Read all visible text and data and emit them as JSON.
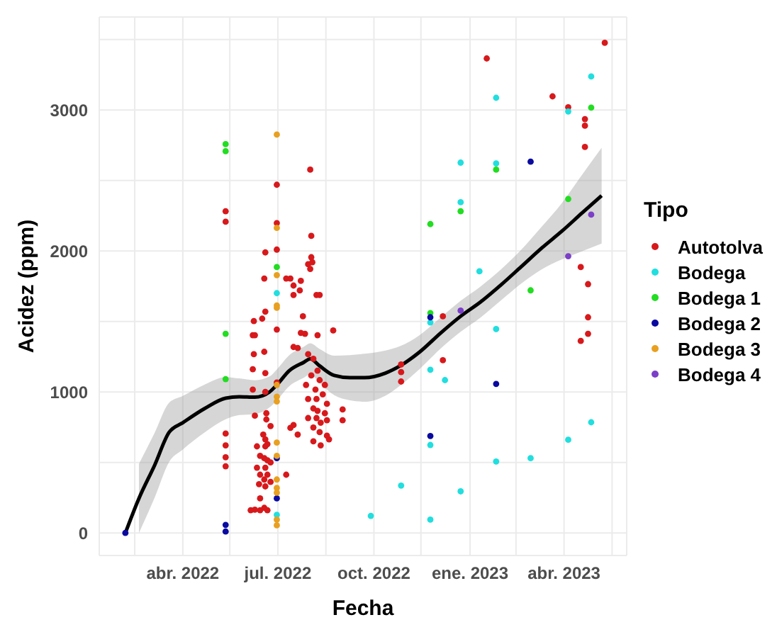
{
  "chart_data": {
    "type": "scatter",
    "xlabel": "Fecha",
    "ylabel": "Acidez (ppm)",
    "legend_title": "Tipo",
    "legend": "right",
    "grid": true,
    "marker": "circle",
    "xlim": [
      "2022-01-11",
      "2023-05-31"
    ],
    "xticks": [
      {
        "value": "2022-02-14",
        "label": null
      },
      {
        "value": "2022-04-01",
        "label": "abr. 2022"
      },
      {
        "value": "2022-05-16",
        "label": null
      },
      {
        "value": "2022-07-01",
        "label": "jul. 2022"
      },
      {
        "value": "2022-08-16",
        "label": null
      },
      {
        "value": "2022-10-01",
        "label": "oct. 2022"
      },
      {
        "value": "2022-11-15",
        "label": null
      },
      {
        "value": "2023-01-01",
        "label": "ene. 2023"
      },
      {
        "value": "2023-02-14",
        "label": null
      },
      {
        "value": "2023-04-01",
        "label": "abr. 2023"
      },
      {
        "value": "2023-05-17",
        "label": null
      }
    ],
    "ylim": [
      -160,
      3660
    ],
    "yticks": [
      0,
      {
        "value": 500,
        "label": null
      },
      1000,
      {
        "value": 1500,
        "label": null
      },
      2000,
      {
        "value": 2500,
        "label": null
      },
      3000,
      {
        "value": 3500,
        "label": null
      }
    ],
    "series": [
      {
        "name": "Autotolva",
        "color": "#d7191c",
        "x": [
          "2022-05-12",
          "2022-05-12",
          "2022-05-12",
          "2022-05-12",
          "2022-05-12",
          "2022-05-12",
          "2022-06-30",
          "2022-06-30",
          "2022-06-30",
          "2022-06-30",
          "2022-06-30",
          "2022-06-19",
          "2022-06-18",
          "2022-06-19",
          "2022-06-16",
          "2022-06-08",
          "2022-06-07",
          "2022-06-09",
          "2022-06-08",
          "2022-06-18",
          "2022-06-07",
          "2022-06-19",
          "2022-06-07",
          "2022-06-19",
          "2022-06-09",
          "2022-06-20",
          "2022-06-20",
          "2022-06-24",
          "2022-06-17",
          "2022-06-19",
          "2022-06-21",
          "2022-06-11",
          "2022-06-19",
          "2022-06-14",
          "2022-06-18",
          "2022-06-21",
          "2022-06-24",
          "2022-06-11",
          "2022-06-19",
          "2022-06-14",
          "2022-06-21",
          "2022-06-18",
          "2022-06-13",
          "2022-06-19",
          "2022-06-14",
          "2022-06-14",
          "2022-06-05",
          "2022-06-18",
          "2022-06-21",
          "2022-06-09",
          "2022-07-09",
          "2022-06-24",
          "2022-07-09",
          "2022-07-13",
          "2022-07-16",
          "2022-07-16",
          "2022-07-23",
          "2022-07-22",
          "2022-07-25",
          "2022-07-16",
          "2022-07-20",
          "2022-07-23",
          "2022-07-27",
          "2022-07-30",
          "2022-08-01",
          "2022-08-02",
          "2022-08-01",
          "2022-08-02",
          "2022-08-03",
          "2022-08-07",
          "2022-08-10",
          "2022-08-08",
          "2022-08-23",
          "2022-07-16",
          "2022-07-20",
          "2022-07-13",
          "2022-07-30",
          "2022-08-04",
          "2022-08-08",
          "2022-08-02",
          "2022-08-10",
          "2022-07-28",
          "2022-08-06",
          "2022-08-15",
          "2022-07-30",
          "2022-08-07",
          "2022-08-13",
          "2022-08-17",
          "2022-08-04",
          "2022-08-08",
          "2022-08-15",
          "2022-07-30",
          "2022-08-07",
          "2022-08-11",
          "2022-08-17",
          "2022-08-04",
          "2022-08-10",
          "2022-08-04",
          "2022-08-19",
          "2022-08-11",
          "2022-08-17",
          "2022-09-01",
          "2022-09-01",
          "2022-10-27",
          "2022-10-27",
          "2022-10-27",
          "2022-12-06",
          "2022-12-06",
          "2023-01-17",
          "2023-03-21",
          "2023-04-05",
          "2023-04-17",
          "2023-04-17",
          "2023-04-21",
          "2023-04-21",
          "2023-04-21",
          "2023-04-24",
          "2023-04-24",
          "2023-04-24",
          "2023-05-10"
        ],
        "values": [
          2282,
          2208,
          705,
          621,
          537,
          473,
          2470,
          2198,
          2010,
          1443,
          1067,
          1990,
          1805,
          1570,
          1520,
          1503,
          1403,
          1403,
          1268,
          1285,
          1161,
          1134,
          1017,
          1000,
          832,
          849,
          805,
          758,
          698,
          664,
          630,
          614,
          614,
          547,
          530,
          515,
          500,
          463,
          463,
          413,
          413,
          379,
          346,
          330,
          245,
          161,
          161,
          178,
          161,
          165,
          413,
          362,
          1805,
          1805,
          1755,
          1688,
          1788,
          1720,
          1537,
          1319,
          1312,
          1419,
          1413,
          1906,
          1873,
          2107,
          2577,
          1956,
          1920,
          1688,
          1688,
          1403,
          1436,
          765,
          698,
          745,
          1268,
          1235,
          1151,
          1117,
          1084,
          1050,
          1017,
          1050,
          950,
          950,
          983,
          916,
          883,
          866,
          849,
          815,
          815,
          782,
          799,
          748,
          715,
          650,
          664,
          621,
          690,
          876,
          799,
          1195,
          1141,
          1074,
          1537,
          1225,
          3366,
          3097,
          3020,
          1886,
          1362,
          2936,
          2889,
          2738,
          1765,
          1530,
          1413,
          3477
        ]
      },
      {
        "name": "Bodega",
        "color": "#22dede",
        "x": [
          "2022-06-30",
          "2022-06-30",
          "2022-09-28",
          "2022-10-27",
          "2022-11-24",
          "2022-11-24",
          "2022-11-24",
          "2022-11-24",
          "2022-12-08",
          "2022-12-23",
          "2022-12-23",
          "2022-12-23",
          "2023-01-10",
          "2023-01-26",
          "2023-01-26",
          "2023-01-26",
          "2023-01-26",
          "2023-02-28",
          "2023-04-05",
          "2023-04-05",
          "2023-04-27",
          "2023-04-27"
        ],
        "values": [
          1701,
          128,
          121,
          336,
          1493,
          1158,
          624,
          94,
          1084,
          2627,
          2346,
          295,
          1856,
          3087,
          2621,
          1446,
          507,
          530,
          2990,
          661,
          3238,
          785
        ]
      },
      {
        "name": "Bodega 1",
        "color": "#22dd22",
        "x": [
          "2022-05-12",
          "2022-05-12",
          "2022-05-12",
          "2022-05-12",
          "2022-06-30",
          "2022-11-24",
          "2022-11-24",
          "2022-12-23",
          "2023-01-26",
          "2023-02-28",
          "2023-04-05",
          "2023-04-27"
        ],
        "values": [
          2758,
          2708,
          1413,
          1091,
          1886,
          2191,
          1560,
          2282,
          2577,
          1721,
          2369,
          3017
        ]
      },
      {
        "name": "Bodega 2",
        "color": "#0a0aa0",
        "x": [
          "2022-02-05",
          "2022-05-12",
          "2022-05-12",
          "2022-06-30",
          "2022-06-30",
          "2022-11-24",
          "2022-11-24",
          "2023-01-26",
          "2023-02-28"
        ],
        "values": [
          0,
          57,
          10,
          530,
          245,
          1530,
          688,
          1057,
          2634
        ]
      },
      {
        "name": "Bodega 3",
        "color": "#e8a020",
        "x": [
          "2022-06-30",
          "2022-06-30",
          "2022-06-30",
          "2022-06-30",
          "2022-06-30",
          "2022-06-30",
          "2022-06-30",
          "2022-06-30",
          "2022-06-30",
          "2022-06-30",
          "2022-06-30",
          "2022-06-30",
          "2022-06-30",
          "2022-06-30",
          "2022-06-30"
        ],
        "values": [
          2826,
          2164,
          1829,
          1614,
          1597,
          1050,
          966,
          933,
          641,
          547,
          379,
          319,
          285,
          94,
          54
        ]
      },
      {
        "name": "Bodega 4",
        "color": "#7b3fc8",
        "x": [
          "2022-12-23",
          "2023-04-05",
          "2023-04-27"
        ],
        "values": [
          1577,
          1963,
          2258
        ]
      },
      {
        "type": "line",
        "color": "#000000",
        "marker": "none",
        "x": [
          "2022-02-05",
          "2022-02-18",
          "2022-03-05",
          "2022-03-19",
          "2022-04-01",
          "2022-04-22",
          "2022-05-12",
          "2022-05-25",
          "2022-06-09",
          "2022-06-23",
          "2022-06-30",
          "2022-07-12",
          "2022-07-26",
          "2022-08-01",
          "2022-08-10",
          "2022-08-24",
          "2022-09-08",
          "2022-09-22",
          "2022-10-12",
          "2022-10-26",
          "2022-11-14",
          "2022-12-04",
          "2022-12-23",
          "2023-01-11",
          "2023-01-31",
          "2023-02-19",
          "2023-03-10",
          "2023-03-30",
          "2023-04-18",
          "2023-05-07"
        ],
        "values": [
          0,
          245,
          480,
          715,
          782,
          883,
          956,
          966,
          963,
          1000,
          1050,
          1151,
          1211,
          1235,
          1185,
          1117,
          1101,
          1101,
          1134,
          1185,
          1285,
          1419,
          1537,
          1638,
          1762,
          1889,
          2017,
          2141,
          2268,
          2393
        ],
        "lower": [
          null,
          0,
          250,
          505,
          592,
          713,
          806,
          836,
          843,
          890,
          940,
          1041,
          1101,
          1125,
          1065,
          977,
          941,
          931,
          974,
          1045,
          1165,
          1309,
          1427,
          1528,
          1652,
          1769,
          1867,
          1941,
          1998,
          2053
        ],
        "upper": [
          null,
          490,
          710,
          925,
          972,
          1053,
          1106,
          1096,
          1083,
          1110,
          1160,
          1261,
          1321,
          1345,
          1305,
          1257,
          1261,
          1271,
          1294,
          1325,
          1405,
          1529,
          1647,
          1748,
          1872,
          2009,
          2167,
          2341,
          2538,
          2733
        ]
      }
    ]
  }
}
